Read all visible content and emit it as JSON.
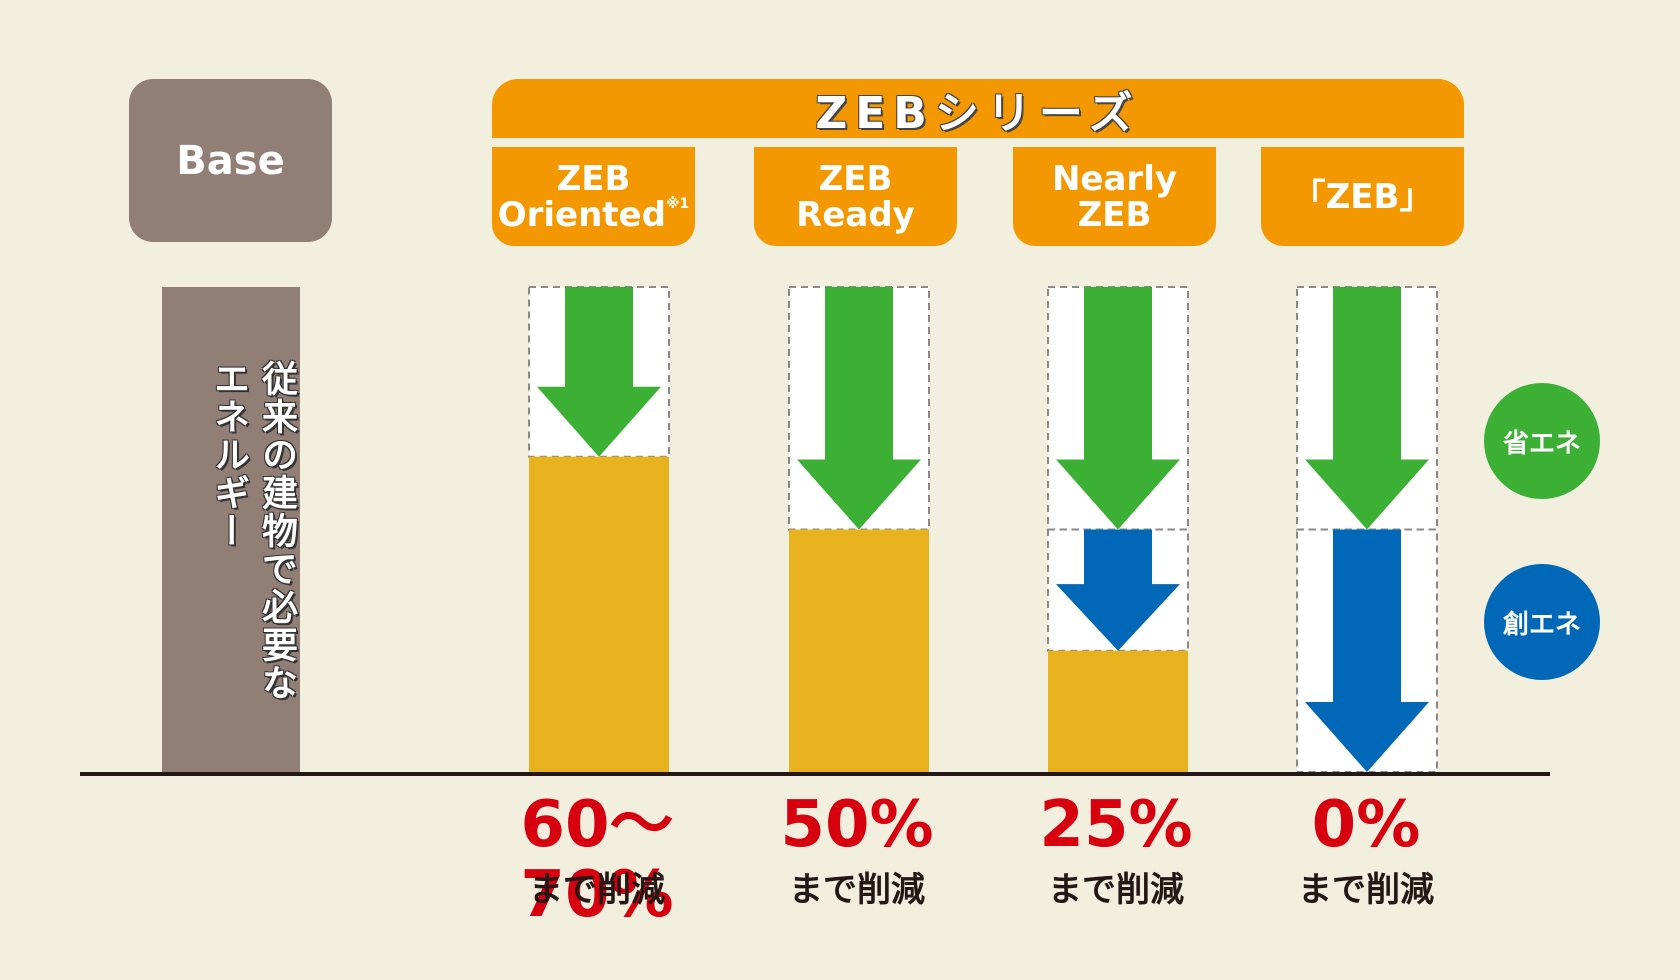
{
  "base": {
    "label": "Base",
    "vertical_label": "従来の建物で必要なエネルギー"
  },
  "series": {
    "title": "ZEBシリーズ"
  },
  "categories": [
    {
      "line1": "ZEB",
      "line2": "Oriented",
      "note": "※1",
      "percent": "60～70%",
      "suffix": "まで削減"
    },
    {
      "line1": "ZEB",
      "line2": "Ready",
      "note": "",
      "percent": "50%",
      "suffix": "まで削減"
    },
    {
      "line1": "Nearly",
      "line2": "ZEB",
      "note": "",
      "percent": "25%",
      "suffix": "まで削減"
    },
    {
      "line1": "「ZEB」",
      "line2": "",
      "note": "",
      "percent": "0%",
      "suffix": "まで削減"
    }
  ],
  "legend": {
    "save_energy": {
      "label": "省エネ",
      "color": "#3cb035"
    },
    "create_energy": {
      "label": "創エネ",
      "color": "#0068b7"
    }
  },
  "colors": {
    "remaining": "#e8b11e",
    "base": "#917f76",
    "header": "#f39800",
    "percent_text": "#d7000f"
  },
  "chart_data": {
    "type": "bar",
    "categories": [
      "Base",
      "ZEB Oriented",
      "ZEB Ready",
      "Nearly ZEB",
      "「ZEB」"
    ],
    "series": [
      {
        "name": "",
        "values": [
          100,
          65,
          50,
          25,
          0
        ]
      },
      {
        "name": "省エネ",
        "values": [
          0,
          35,
          50,
          50,
          50
        ]
      },
      {
        "name": "創エネ",
        "values": [
          0,
          0,
          0,
          25,
          50
        ]
      }
    ]
  }
}
